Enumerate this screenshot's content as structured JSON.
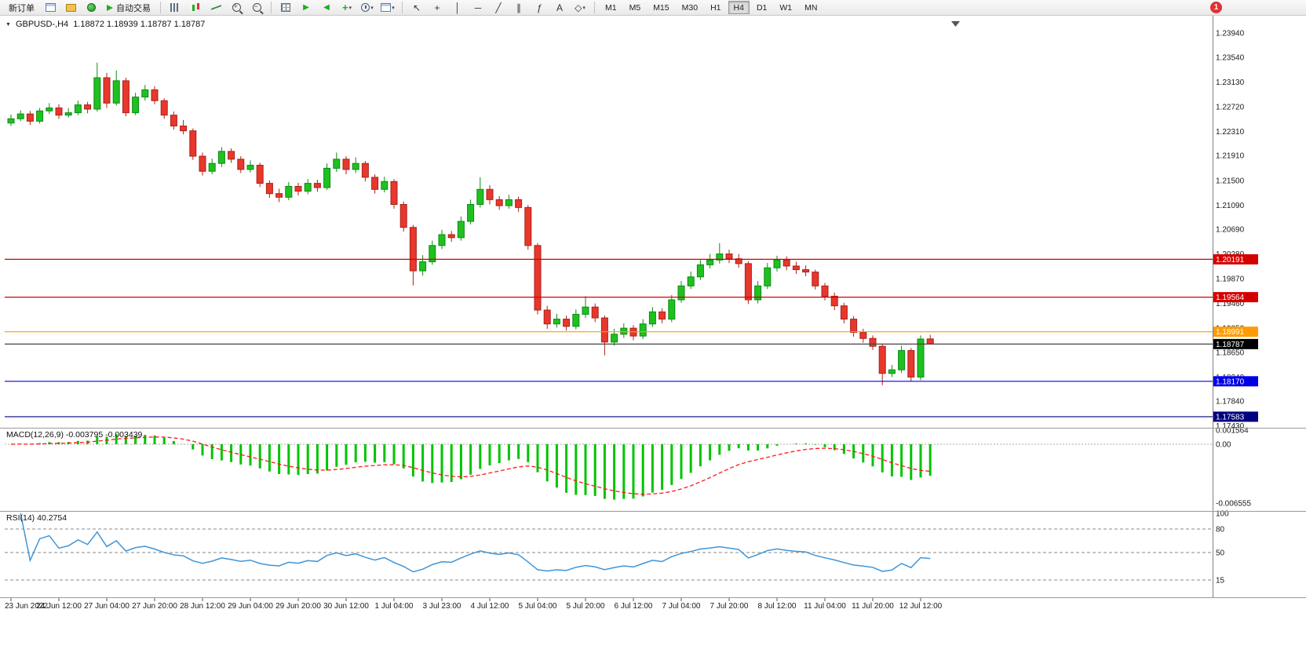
{
  "toolbar": {
    "new_order_label": "新订单",
    "autotrading_label": "自动交易",
    "left_icons": [
      "new-chart-icon",
      "profiles-icon",
      "refresh-icon"
    ],
    "chart_type_icons": [
      "bar-chart-icon",
      "candlestick-icon",
      "line-chart-icon"
    ],
    "zoom_icons": [
      "zoom-in-icon",
      "zoom-out-icon"
    ],
    "window_icons": [
      "tile-windows-icon",
      "auto-scroll-icon",
      "chart-shift-icon"
    ],
    "dropdown_icons": [
      "indicators-dropdown",
      "periods-dropdown",
      "templates-dropdown"
    ],
    "drawing_icons": [
      "cursor-icon",
      "crosshair-icon",
      "vertical-line-icon",
      "horizontal-line-icon",
      "trendline-icon",
      "channel-icon",
      "fibonacci-icon",
      "text-icon",
      "shapes-dropdown"
    ],
    "timeframes": [
      "M1",
      "M5",
      "M15",
      "M30",
      "H1",
      "H4",
      "D1",
      "W1",
      "MN"
    ],
    "active_timeframe": "H4",
    "notification_count": "1"
  },
  "icons": {
    "symbol_menu": "▼",
    "dropdown_arrow": "▾",
    "auto-scroll-icon": "▶",
    "chart-shift-icon": "◀",
    "indicators-dropdown": "+",
    "cursor-icon": "↖",
    "crosshair-icon": "+",
    "vertical-line-icon": "│",
    "horizontal-line-icon": "─",
    "trendline-icon": "╱",
    "channel-icon": "∥",
    "fibonacci-icon": "ƒ",
    "text-icon": "A",
    "shapes-dropdown": "◇"
  },
  "chart_header": {
    "symbol_period": "GBPUSD-,H4",
    "ohlc": "1.18872 1.18939 1.18787 1.18787"
  },
  "macd": {
    "label": "MACD(12,26,9)",
    "value_text": "-0.003795 -0.003439",
    "scale_labels": [
      {
        "v": 0.001564,
        "t": "0.001564"
      },
      {
        "v": 0,
        "t": "0.00"
      },
      {
        "v": -0.006555,
        "t": "-0.006555"
      }
    ],
    "params": {
      "fast": 12,
      "slow": 26,
      "signal": 9
    }
  },
  "rsi": {
    "label": "RSI(14)",
    "value_text": "40.2754",
    "period": 14,
    "levels": [
      80,
      50,
      15
    ],
    "scale_labels": [
      {
        "v": 100,
        "t": "100"
      },
      {
        "v": 80,
        "t": "80"
      },
      {
        "v": 50,
        "t": "50"
      },
      {
        "v": 15,
        "t": "15"
      }
    ]
  },
  "colors": {
    "up": "#1fc11f",
    "down": "#e8372c",
    "up_edge": "#0d8a17",
    "down_edge": "#a9221a",
    "macd_hist": "#00c400",
    "macd_signal": "#ff1a1a",
    "rsi_line": "#3f95d8"
  },
  "chart_data": {
    "type": "candlestick",
    "symbol": "GBPUSD-",
    "period": "H4",
    "ylim": [
      1.174,
      1.2415
    ],
    "y_ticks": [
      "1.23940",
      "1.23540",
      "1.23130",
      "1.22720",
      "1.22310",
      "1.21910",
      "1.21500",
      "1.21090",
      "1.20690",
      "1.20280",
      "1.19870",
      "1.19460",
      "1.19050",
      "1.18650",
      "1.18240",
      "1.17840",
      "1.17430"
    ],
    "levels": [
      {
        "price": 1.20191,
        "label": "1.20191",
        "color": "#d40000",
        "label_bg": "#d40000"
      },
      {
        "price": 1.19564,
        "label": "1.19564",
        "color": "#d40000",
        "label_bg": "#d40000"
      },
      {
        "price": 1.18991,
        "label": "1.18991",
        "color": "#ff9c00",
        "label_bg": "#ff9c00"
      },
      {
        "price": 1.18787,
        "label": "1.18787",
        "color": "#444444",
        "label_bg": "#000000"
      },
      {
        "price": 1.1817,
        "label": "1.18170",
        "color": "#0000e8",
        "label_bg": "#0000e8"
      },
      {
        "price": 1.17583,
        "label": "1.17583",
        "color": "#000080",
        "label_bg": "#000080"
      }
    ],
    "x_labels": [
      {
        "i": 0,
        "t": "23 Jun 2022"
      },
      {
        "i": 5,
        "t": "24 Jun 12:00"
      },
      {
        "i": 10,
        "t": "27 Jun 04:00"
      },
      {
        "i": 15,
        "t": "27 Jun 20:00"
      },
      {
        "i": 20,
        "t": "28 Jun 12:00"
      },
      {
        "i": 25,
        "t": "29 Jun 04:00"
      },
      {
        "i": 30,
        "t": "29 Jun 20:00"
      },
      {
        "i": 35,
        "t": "30 Jun 12:00"
      },
      {
        "i": 40,
        "t": "1 Jul 04:00"
      },
      {
        "i": 45,
        "t": "3 Jul 23:00"
      },
      {
        "i": 50,
        "t": "4 Jul 12:00"
      },
      {
        "i": 55,
        "t": "5 Jul 04:00"
      },
      {
        "i": 60,
        "t": "5 Jul 20:00"
      },
      {
        "i": 65,
        "t": "6 Jul 12:00"
      },
      {
        "i": 70,
        "t": "7 Jul 04:00"
      },
      {
        "i": 75,
        "t": "7 Jul 20:00"
      },
      {
        "i": 80,
        "t": "8 Jul 12:00"
      },
      {
        "i": 85,
        "t": "11 Jul 04:00"
      },
      {
        "i": 90,
        "t": "11 Jul 20:00"
      },
      {
        "i": 95,
        "t": "12 Jul 12:00"
      }
    ],
    "candles": [
      [
        1.2245,
        1.2259,
        1.224,
        1.2252
      ],
      [
        1.2252,
        1.2266,
        1.2248,
        1.226
      ],
      [
        1.226,
        1.2265,
        1.2242,
        1.2248
      ],
      [
        1.2248,
        1.227,
        1.2244,
        1.2265
      ],
      [
        1.2265,
        1.2278,
        1.226,
        1.227
      ],
      [
        1.227,
        1.2276,
        1.2252,
        1.2258
      ],
      [
        1.2258,
        1.227,
        1.2254,
        1.2262
      ],
      [
        1.2262,
        1.2282,
        1.2258,
        1.2275
      ],
      [
        1.2275,
        1.228,
        1.2261,
        1.2268
      ],
      [
        1.2268,
        1.2345,
        1.2264,
        1.232
      ],
      [
        1.232,
        1.2328,
        1.227,
        1.2278
      ],
      [
        1.2278,
        1.2332,
        1.2274,
        1.2315
      ],
      [
        1.2315,
        1.232,
        1.2256,
        1.2262
      ],
      [
        1.2262,
        1.2295,
        1.2258,
        1.2288
      ],
      [
        1.2288,
        1.2308,
        1.2282,
        1.23
      ],
      [
        1.23,
        1.2306,
        1.2276,
        1.2282
      ],
      [
        1.2282,
        1.2286,
        1.2252,
        1.2258
      ],
      [
        1.2258,
        1.2264,
        1.2234,
        1.224
      ],
      [
        1.224,
        1.225,
        1.2226,
        1.2232
      ],
      [
        1.2232,
        1.2236,
        1.2184,
        1.219
      ],
      [
        1.219,
        1.2196,
        1.2158,
        1.2165
      ],
      [
        1.2165,
        1.2186,
        1.216,
        1.2178
      ],
      [
        1.2178,
        1.2205,
        1.2172,
        1.2198
      ],
      [
        1.2198,
        1.2203,
        1.2179,
        1.2185
      ],
      [
        1.2185,
        1.219,
        1.2162,
        1.2168
      ],
      [
        1.2168,
        1.2183,
        1.2163,
        1.2175
      ],
      [
        1.2175,
        1.2179,
        1.2139,
        1.2145
      ],
      [
        1.2145,
        1.215,
        1.2121,
        1.2128
      ],
      [
        1.2128,
        1.2136,
        1.2114,
        1.2122
      ],
      [
        1.2122,
        1.2147,
        1.2117,
        1.214
      ],
      [
        1.214,
        1.2146,
        1.2125,
        1.2132
      ],
      [
        1.2132,
        1.2152,
        1.2127,
        1.2145
      ],
      [
        1.2145,
        1.2151,
        1.2131,
        1.2138
      ],
      [
        1.2138,
        1.2178,
        1.2134,
        1.217
      ],
      [
        1.217,
        1.2196,
        1.2164,
        1.2185
      ],
      [
        1.2185,
        1.219,
        1.216,
        1.2168
      ],
      [
        1.2168,
        1.2188,
        1.2162,
        1.2178
      ],
      [
        1.2178,
        1.2182,
        1.2148,
        1.2155
      ],
      [
        1.2155,
        1.216,
        1.2128,
        1.2135
      ],
      [
        1.2135,
        1.2156,
        1.213,
        1.2148
      ],
      [
        1.2148,
        1.2152,
        1.2103,
        1.211
      ],
      [
        1.211,
        1.2115,
        1.2065,
        1.2072
      ],
      [
        1.2072,
        1.2076,
        1.1976,
        1.2
      ],
      [
        1.2,
        1.2026,
        1.1992,
        1.2015
      ],
      [
        1.2015,
        1.205,
        1.201,
        1.2042
      ],
      [
        1.2042,
        1.2068,
        1.2036,
        1.206
      ],
      [
        1.206,
        1.2066,
        1.2048,
        1.2055
      ],
      [
        1.2055,
        1.209,
        1.205,
        1.2082
      ],
      [
        1.2082,
        1.2118,
        1.2077,
        1.211
      ],
      [
        1.211,
        1.2155,
        1.2105,
        1.2135
      ],
      [
        1.2135,
        1.2142,
        1.211,
        1.2118
      ],
      [
        1.2118,
        1.2124,
        1.2101,
        1.2108
      ],
      [
        1.2108,
        1.2126,
        1.2103,
        1.2118
      ],
      [
        1.2118,
        1.2123,
        1.2098,
        1.2105
      ],
      [
        1.2105,
        1.2109,
        1.2035,
        1.2042
      ],
      [
        1.2042,
        1.2046,
        1.1928,
        1.1935
      ],
      [
        1.1935,
        1.1942,
        1.1904,
        1.1912
      ],
      [
        1.1912,
        1.1929,
        1.1906,
        1.192
      ],
      [
        1.192,
        1.1926,
        1.1901,
        1.1908
      ],
      [
        1.1908,
        1.1936,
        1.1903,
        1.1928
      ],
      [
        1.1928,
        1.1958,
        1.1922,
        1.194
      ],
      [
        1.194,
        1.1946,
        1.1915,
        1.1922
      ],
      [
        1.1922,
        1.1926,
        1.186,
        1.1882
      ],
      [
        1.1882,
        1.1904,
        1.1876,
        1.1895
      ],
      [
        1.1895,
        1.1913,
        1.1889,
        1.1905
      ],
      [
        1.1905,
        1.191,
        1.1885,
        1.1892
      ],
      [
        1.1892,
        1.192,
        1.1887,
        1.1912
      ],
      [
        1.1912,
        1.194,
        1.1907,
        1.1932
      ],
      [
        1.1932,
        1.1938,
        1.1913,
        1.192
      ],
      [
        1.192,
        1.196,
        1.1915,
        1.1952
      ],
      [
        1.1952,
        1.1983,
        1.1947,
        1.1975
      ],
      [
        1.1975,
        1.1999,
        1.197,
        1.199
      ],
      [
        1.199,
        1.2018,
        1.1985,
        1.201
      ],
      [
        1.201,
        1.2028,
        1.2004,
        1.2018
      ],
      [
        1.2018,
        1.2046,
        1.2012,
        1.2028
      ],
      [
        1.2028,
        1.2035,
        1.2013,
        1.202
      ],
      [
        1.202,
        1.2028,
        1.2005,
        1.2012
      ],
      [
        1.2012,
        1.2016,
        1.1945,
        1.1952
      ],
      [
        1.1952,
        1.1983,
        1.1946,
        1.1975
      ],
      [
        1.1975,
        1.2013,
        1.197,
        1.2005
      ],
      [
        1.2005,
        1.2025,
        1.1999,
        1.2018
      ],
      [
        1.2018,
        1.2024,
        1.2001,
        1.2008
      ],
      [
        1.2008,
        1.2015,
        1.1995,
        1.2002
      ],
      [
        1.2002,
        1.2009,
        1.1991,
        1.1998
      ],
      [
        1.1998,
        1.2002,
        1.1969,
        1.1975
      ],
      [
        1.1975,
        1.198,
        1.1951,
        1.1958
      ],
      [
        1.1958,
        1.1964,
        1.1935,
        1.1942
      ],
      [
        1.1942,
        1.1947,
        1.1913,
        1.192
      ],
      [
        1.192,
        1.1925,
        1.1891,
        1.1898
      ],
      [
        1.1898,
        1.1904,
        1.1881,
        1.1888
      ],
      [
        1.1888,
        1.1893,
        1.1869,
        1.1875
      ],
      [
        1.1875,
        1.1879,
        1.18105,
        1.183
      ],
      [
        1.183,
        1.1844,
        1.1824,
        1.1836
      ],
      [
        1.1836,
        1.1876,
        1.1831,
        1.1868
      ],
      [
        1.1868,
        1.1872,
        1.1817,
        1.1824
      ],
      [
        1.1824,
        1.1893,
        1.1819,
        1.1887
      ],
      [
        1.18872,
        1.18939,
        1.18787,
        1.18787
      ]
    ]
  }
}
